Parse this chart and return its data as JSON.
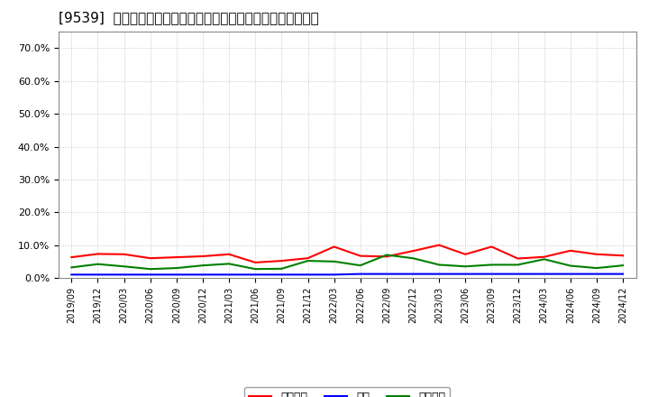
{
  "title": "[9539]  売上債権、在庫、買入債務の総資産に対する比率の推移",
  "ylim": [
    0.0,
    0.75
  ],
  "yticks": [
    0.0,
    0.1,
    0.2,
    0.3,
    0.4,
    0.5,
    0.6,
    0.7
  ],
  "ytick_labels": [
    "0.0%",
    "10.0%",
    "20.0%",
    "30.0%",
    "40.0%",
    "50.0%",
    "60.0%",
    "70.0%"
  ],
  "dates": [
    "2019/09",
    "2019/12",
    "2020/03",
    "2020/06",
    "2020/09",
    "2020/12",
    "2021/03",
    "2021/06",
    "2021/09",
    "2021/12",
    "2022/03",
    "2022/06",
    "2022/09",
    "2022/12",
    "2023/03",
    "2023/06",
    "2023/09",
    "2023/12",
    "2024/03",
    "2024/06",
    "2024/09",
    "2024/12"
  ],
  "urikake": [
    0.063,
    0.073,
    0.072,
    0.06,
    0.063,
    0.066,
    0.072,
    0.047,
    0.052,
    0.06,
    0.095,
    0.067,
    0.065,
    0.082,
    0.1,
    0.072,
    0.095,
    0.059,
    0.064,
    0.083,
    0.072,
    0.068
  ],
  "zaiko": [
    0.01,
    0.01,
    0.01,
    0.01,
    0.01,
    0.01,
    0.01,
    0.01,
    0.01,
    0.01,
    0.01,
    0.012,
    0.012,
    0.012,
    0.012,
    0.012,
    0.012,
    0.012,
    0.012,
    0.012,
    0.012,
    0.012
  ],
  "kaiire": [
    0.032,
    0.042,
    0.035,
    0.027,
    0.03,
    0.038,
    0.043,
    0.027,
    0.028,
    0.052,
    0.05,
    0.038,
    0.07,
    0.06,
    0.04,
    0.035,
    0.04,
    0.04,
    0.057,
    0.037,
    0.03,
    0.038
  ],
  "urikake_color": "#FF0000",
  "zaiko_color": "#0000FF",
  "kaiire_color": "#008000",
  "bg_color": "#FFFFFF",
  "grid_color": "#AAAAAA",
  "legend_labels": [
    "売上債権",
    "在庫",
    "買入債務"
  ]
}
